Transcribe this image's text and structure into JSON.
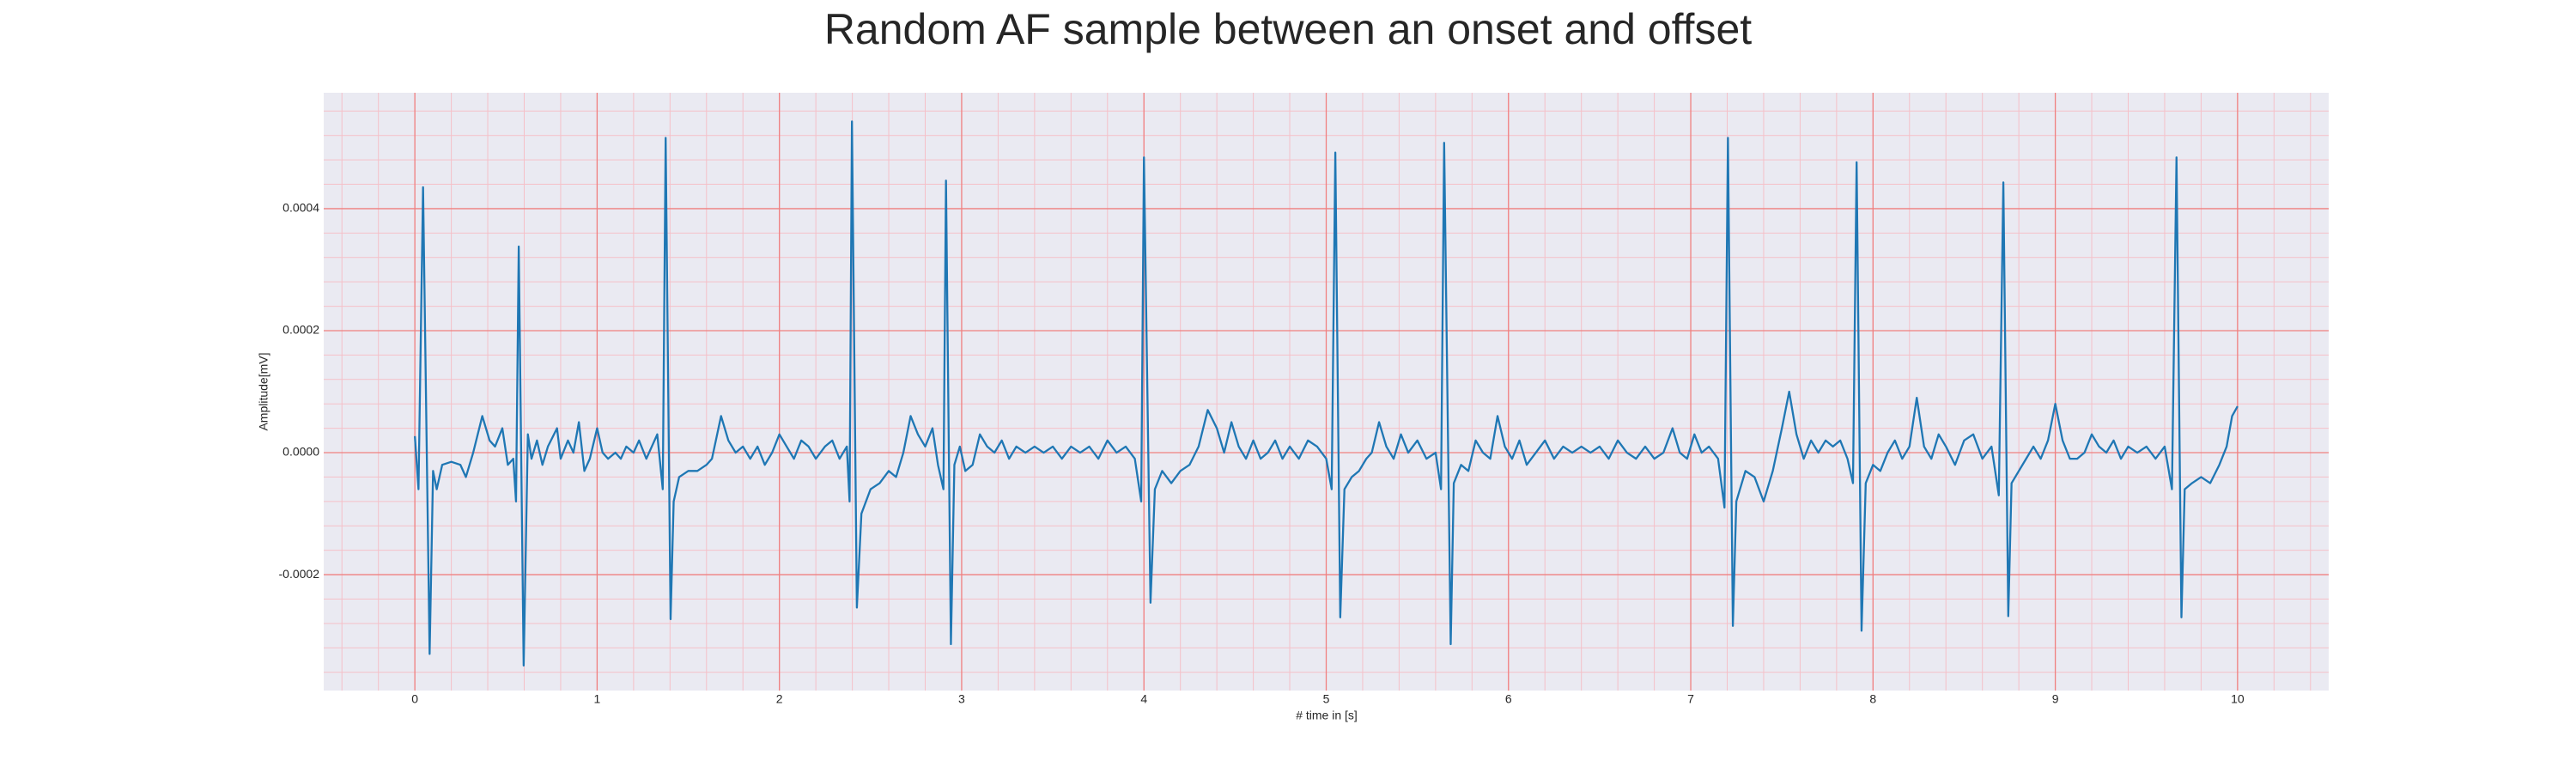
{
  "chart_data": {
    "type": "line",
    "title": "Random AF sample between an onset and offset",
    "xlabel": "# time in [s]",
    "ylabel": "Amplitude[mV]",
    "xlim": [
      -0.5,
      10.5
    ],
    "ylim": [
      -0.00039,
      0.00059
    ],
    "xticks": [
      0,
      1,
      2,
      3,
      4,
      5,
      6,
      7,
      8,
      9,
      10
    ],
    "yticks": [
      -0.0002,
      {
        "value": 0,
        "label": "0.0000"
      },
      0.0002,
      0.0004
    ],
    "grid": true,
    "grid_color": "#f08080",
    "minor_grid": {
      "x_step": 0.2,
      "y_step": 4e-05,
      "color": "#f5c0c8"
    },
    "background": "#eaeaf2",
    "series": [
      {
        "color": "#1f77b4",
        "x": [
          0,
          0.02,
          0.045,
          0.081,
          0.1,
          0.12,
          0.15,
          0.2,
          0.25,
          0.28,
          0.32,
          0.37,
          0.41,
          0.44,
          0.48,
          0.51,
          0.54,
          0.555,
          0.57,
          0.597,
          0.62,
          0.64,
          0.67,
          0.7,
          0.73,
          0.78,
          0.8,
          0.84,
          0.87,
          0.9,
          0.93,
          0.96,
          1.0,
          1.03,
          1.06,
          1.1,
          1.13,
          1.16,
          1.2,
          1.23,
          1.27,
          1.3,
          1.33,
          1.36,
          1.376,
          1.403,
          1.42,
          1.45,
          1.5,
          1.55,
          1.6,
          1.63,
          1.68,
          1.72,
          1.76,
          1.8,
          1.84,
          1.88,
          1.92,
          1.96,
          2.0,
          2.04,
          2.08,
          2.12,
          2.16,
          2.2,
          2.25,
          2.29,
          2.33,
          2.37,
          2.385,
          2.398,
          2.425,
          2.45,
          2.5,
          2.55,
          2.6,
          2.64,
          2.68,
          2.72,
          2.76,
          2.8,
          2.84,
          2.87,
          2.9,
          2.914,
          2.941,
          2.96,
          2.99,
          3.02,
          3.06,
          3.1,
          3.14,
          3.18,
          3.22,
          3.26,
          3.3,
          3.35,
          3.4,
          3.45,
          3.5,
          3.55,
          3.6,
          3.65,
          3.7,
          3.75,
          3.8,
          3.85,
          3.9,
          3.95,
          3.985,
          4.0,
          4.036,
          4.06,
          4.1,
          4.15,
          4.2,
          4.25,
          4.3,
          4.35,
          4.4,
          4.44,
          4.48,
          4.52,
          4.56,
          4.6,
          4.64,
          4.68,
          4.72,
          4.76,
          4.8,
          4.85,
          4.9,
          4.95,
          5.0,
          5.03,
          5.05,
          5.077,
          5.1,
          5.14,
          5.18,
          5.22,
          5.25,
          5.29,
          5.33,
          5.37,
          5.41,
          5.45,
          5.5,
          5.55,
          5.6,
          5.63,
          5.647,
          5.683,
          5.7,
          5.74,
          5.78,
          5.82,
          5.86,
          5.9,
          5.94,
          5.98,
          6.02,
          6.06,
          6.1,
          6.15,
          6.2,
          6.25,
          6.3,
          6.35,
          6.4,
          6.45,
          6.5,
          6.55,
          6.6,
          6.65,
          6.7,
          6.75,
          6.8,
          6.85,
          6.9,
          6.94,
          6.98,
          7.02,
          7.06,
          7.1,
          7.15,
          7.185,
          7.204,
          7.231,
          7.25,
          7.3,
          7.35,
          7.4,
          7.45,
          7.5,
          7.54,
          7.58,
          7.62,
          7.66,
          7.7,
          7.74,
          7.78,
          7.82,
          7.86,
          7.89,
          7.91,
          7.937,
          7.96,
          8.0,
          8.04,
          8.08,
          8.12,
          8.16,
          8.2,
          8.24,
          8.28,
          8.32,
          8.36,
          8.4,
          8.45,
          8.5,
          8.55,
          8.6,
          8.65,
          8.69,
          8.715,
          8.742,
          8.76,
          8.8,
          8.84,
          8.88,
          8.92,
          8.96,
          9.0,
          9.04,
          9.08,
          9.12,
          9.16,
          9.2,
          9.24,
          9.28,
          9.32,
          9.36,
          9.4,
          9.45,
          9.5,
          9.55,
          9.6,
          9.64,
          9.665,
          9.692,
          9.71,
          9.75,
          9.8,
          9.85,
          9.9,
          9.94,
          9.97,
          10.0
        ],
        "values": [
          2.7e-05,
          -6e-05,
          0.000435,
          -0.00033,
          -3e-05,
          -6e-05,
          -2e-05,
          -1.5e-05,
          -2e-05,
          -4e-05,
          0,
          6e-05,
          2e-05,
          1e-05,
          4e-05,
          -2e-05,
          -1e-05,
          -8e-05,
          0.000338,
          -0.000349,
          3e-05,
          -1e-05,
          2e-05,
          -2e-05,
          1e-05,
          4e-05,
          -1e-05,
          2e-05,
          0,
          5e-05,
          -3e-05,
          -1e-05,
          4e-05,
          0,
          -1e-05,
          0,
          -1e-05,
          1e-05,
          0,
          2e-05,
          -1e-05,
          1e-05,
          3e-05,
          -6e-05,
          0.000516,
          -0.000273,
          -8e-05,
          -4e-05,
          -3e-05,
          -3e-05,
          -2e-05,
          -1e-05,
          6e-05,
          2e-05,
          0,
          1e-05,
          -1e-05,
          1e-05,
          -2e-05,
          0,
          3e-05,
          1e-05,
          -1e-05,
          2e-05,
          1e-05,
          -1e-05,
          1e-05,
          2e-05,
          -1e-05,
          1e-05,
          -8e-05,
          0.000543,
          -0.000254,
          -0.0001,
          -6e-05,
          -5e-05,
          -3e-05,
          -4e-05,
          0,
          6e-05,
          3e-05,
          1e-05,
          4e-05,
          -2e-05,
          -6e-05,
          0.000446,
          -0.000314,
          -2e-05,
          1e-05,
          -3e-05,
          -2e-05,
          3e-05,
          1e-05,
          0,
          2e-05,
          -1e-05,
          1e-05,
          0,
          1e-05,
          0,
          1e-05,
          -1e-05,
          1e-05,
          0,
          1e-05,
          -1e-05,
          2e-05,
          0,
          1e-05,
          -1e-05,
          -8e-05,
          0.000484,
          -0.000246,
          -6e-05,
          -3e-05,
          -5e-05,
          -3e-05,
          -2e-05,
          1e-05,
          7e-05,
          4e-05,
          0,
          5e-05,
          1e-05,
          -1e-05,
          2e-05,
          -1e-05,
          0,
          2e-05,
          -1e-05,
          1e-05,
          -1e-05,
          2e-05,
          1e-05,
          -1e-05,
          -6e-05,
          0.000492,
          -0.00027,
          -6e-05,
          -4e-05,
          -3e-05,
          -1e-05,
          0,
          5e-05,
          1e-05,
          -1e-05,
          3e-05,
          0,
          2e-05,
          -1e-05,
          0,
          -6e-05,
          0.000508,
          -0.000314,
          -5e-05,
          -2e-05,
          -3e-05,
          2e-05,
          0,
          -1e-05,
          6e-05,
          1e-05,
          -1e-05,
          2e-05,
          -2e-05,
          0,
          2e-05,
          -1e-05,
          1e-05,
          0,
          1e-05,
          0,
          1e-05,
          -1e-05,
          2e-05,
          0,
          -1e-05,
          1e-05,
          -1e-05,
          0,
          4e-05,
          0,
          -1e-05,
          3e-05,
          0,
          1e-05,
          -1e-05,
          -9e-05,
          0.000516,
          -0.000284,
          -8e-05,
          -3e-05,
          -4e-05,
          -8e-05,
          -3e-05,
          4e-05,
          0.0001,
          3e-05,
          -1e-05,
          2e-05,
          0,
          2e-05,
          1e-05,
          2e-05,
          -1e-05,
          -5e-05,
          0.000476,
          -0.000292,
          -5e-05,
          -2e-05,
          -3e-05,
          0,
          2e-05,
          -1e-05,
          1e-05,
          9e-05,
          1e-05,
          -1e-05,
          3e-05,
          1e-05,
          -2e-05,
          2e-05,
          3e-05,
          -1e-05,
          1e-05,
          -7e-05,
          0.000443,
          -0.000268,
          -5e-05,
          -3e-05,
          -1e-05,
          1e-05,
          -1e-05,
          2e-05,
          8e-05,
          2e-05,
          -1e-05,
          -1e-05,
          0,
          3e-05,
          1e-05,
          0,
          2e-05,
          -1e-05,
          1e-05,
          0,
          1e-05,
          -1e-05,
          1e-05,
          -6e-05,
          0.000484,
          -0.00027,
          -6e-05,
          -5e-05,
          -4e-05,
          -5e-05,
          -2e-05,
          1e-05,
          6e-05,
          7.6e-05
        ]
      }
    ]
  }
}
